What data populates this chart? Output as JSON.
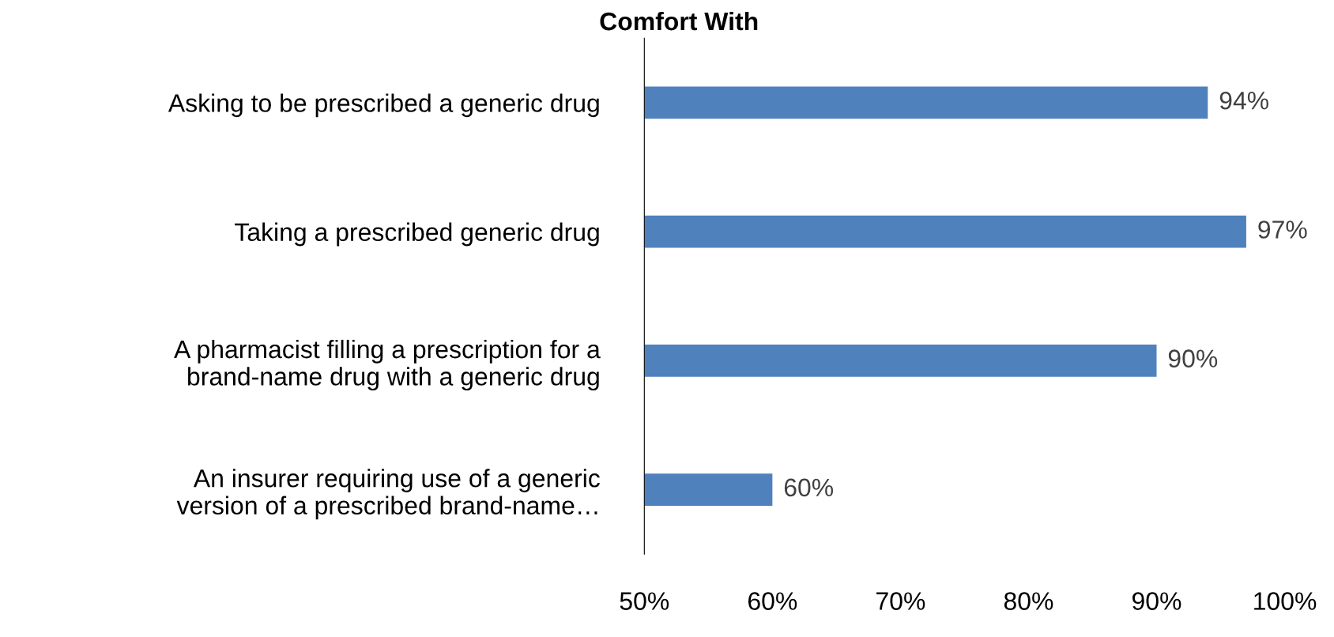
{
  "chart_data": {
    "type": "bar",
    "orientation": "horizontal",
    "title": "Comfort With",
    "categories": [
      "Asking to be prescribed a generic drug",
      "Taking a prescribed generic drug",
      "A pharmacist filling a prescription for a\nbrand-name drug with a generic drug",
      "An insurer requiring use of a generic\nversion of a prescribed brand-name…"
    ],
    "values": [
      94,
      97,
      90,
      60
    ],
    "value_labels": [
      "94%",
      "97%",
      "90%",
      "60%"
    ],
    "color": "#4f81bd",
    "xlim": [
      50,
      100
    ],
    "xticks": [
      {
        "value": 50,
        "label": "50%"
      },
      {
        "value": 60,
        "label": "60%"
      },
      {
        "value": 70,
        "label": "70%"
      },
      {
        "value": 80,
        "label": "80%"
      },
      {
        "value": 90,
        "label": "90%"
      },
      {
        "value": 100,
        "label": "100%"
      }
    ],
    "grid": false,
    "legend": false
  }
}
